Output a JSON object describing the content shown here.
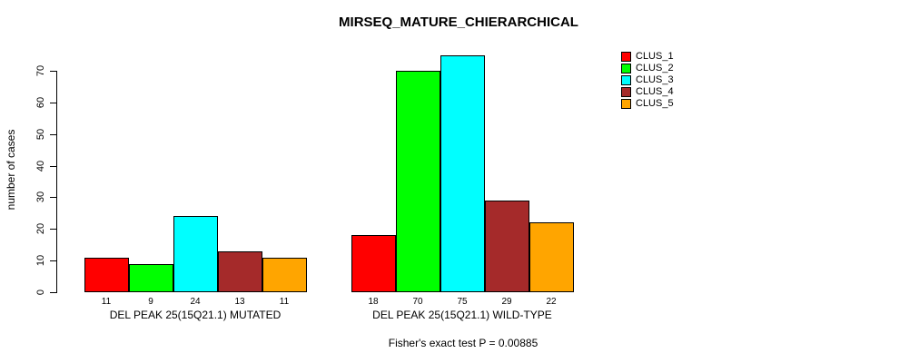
{
  "title": "MIRSEQ_MATURE_CHIERARCHICAL",
  "caption": "Fisher's exact test P = 0.00885",
  "chart_data": {
    "type": "bar",
    "title": "MIRSEQ_MATURE_CHIERARCHICAL",
    "xlabel": "",
    "ylabel": "number of cases",
    "ylim": [
      0,
      70
    ],
    "yticks": [
      0,
      10,
      20,
      30,
      40,
      50,
      60,
      70
    ],
    "grid": false,
    "legend_position": "right",
    "legend": [
      {
        "label": "CLUS_1",
        "color": "#FF0000"
      },
      {
        "label": "CLUS_2",
        "color": "#00FF00"
      },
      {
        "label": "CLUS_3",
        "color": "#00FFFF"
      },
      {
        "label": "CLUS_4",
        "color": "#A52A2A"
      },
      {
        "label": "CLUS_5",
        "color": "#FFA500"
      }
    ],
    "series_names": [
      "CLUS_1",
      "CLUS_2",
      "CLUS_3",
      "CLUS_4",
      "CLUS_5"
    ],
    "groups": [
      {
        "label": "DEL PEAK 25(15Q21.1) MUTATED",
        "values": [
          11,
          9,
          24,
          13,
          11
        ],
        "value_labels": [
          "11",
          "9",
          "24",
          "13",
          "11"
        ]
      },
      {
        "label": "DEL PEAK 25(15Q21.1) WILD-TYPE",
        "values": [
          18,
          70,
          75,
          29,
          22
        ],
        "value_labels": [
          "18",
          "70",
          "75",
          "29",
          "22"
        ]
      }
    ],
    "annotation": "Fisher's exact test P = 0.00885"
  }
}
